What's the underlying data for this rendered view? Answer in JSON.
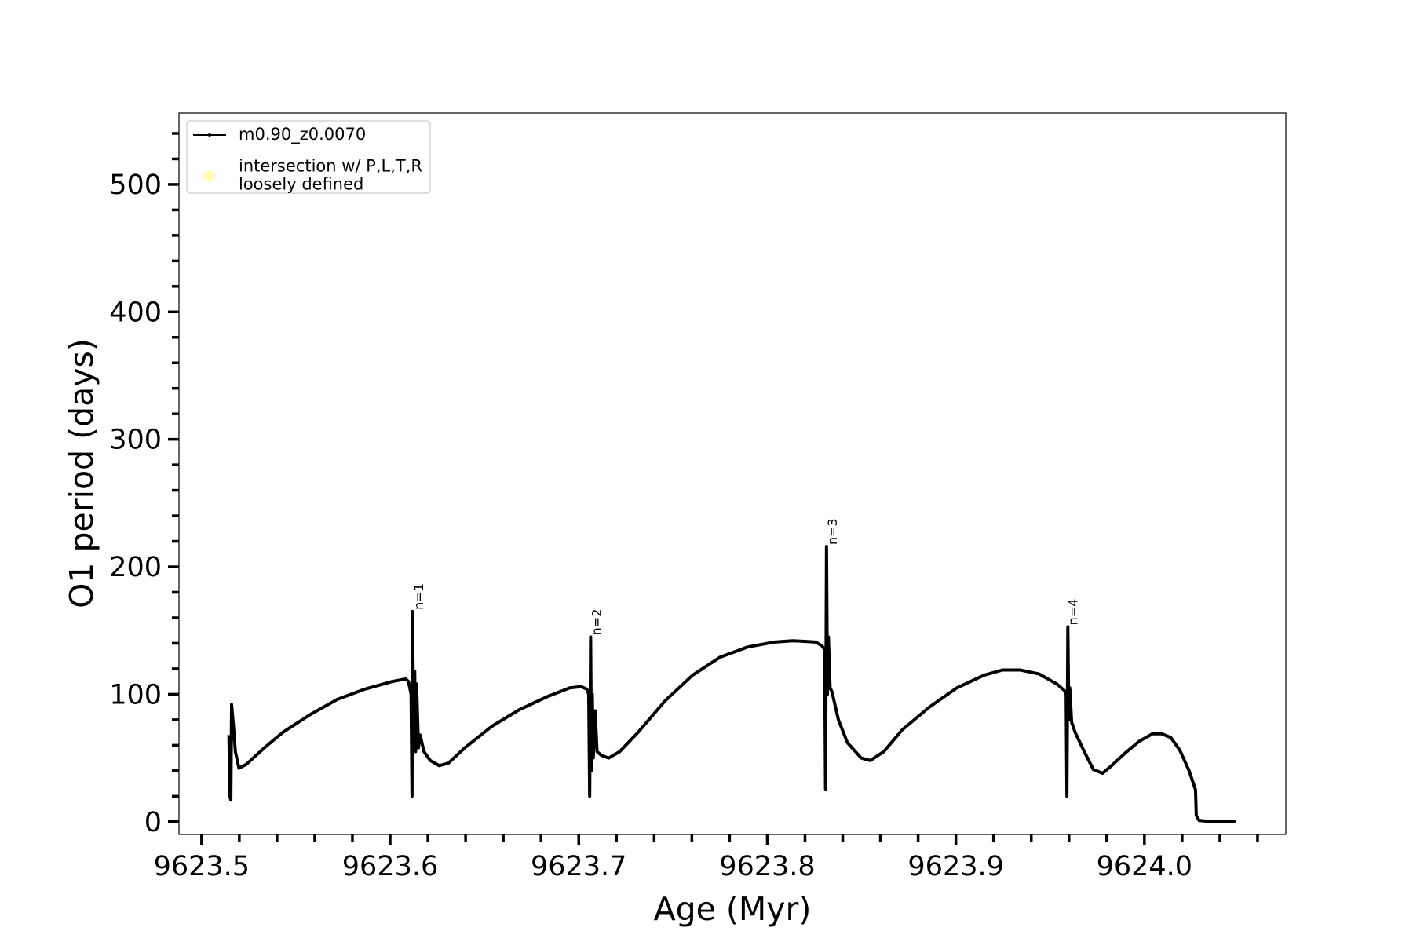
{
  "chart_data": {
    "type": "line",
    "x_label": "Age (Myr)",
    "y_label": "O1 period (days)",
    "xlim": [
      9623.488,
      9624.075
    ],
    "ylim": [
      -10,
      556
    ],
    "xticks": [
      9623.5,
      9623.6,
      9623.7,
      9623.8,
      9623.9,
      {
        "value": 9624,
        "label": "9624.0"
      }
    ],
    "yticks": [
      0,
      100,
      200,
      300,
      400,
      500
    ],
    "xminorticks": [
      9623.52,
      9623.54,
      9623.56,
      9623.58,
      9623.62,
      9623.64,
      9623.66,
      9623.68,
      9623.72,
      9623.74,
      9623.76,
      9623.78,
      9623.82,
      9623.84,
      9623.86,
      9623.88,
      9623.92,
      9623.94,
      9623.96,
      9623.98,
      9624.02,
      9624.04,
      9624.06
    ],
    "yminorticks": [
      20,
      40,
      60,
      80,
      120,
      140,
      160,
      180,
      220,
      240,
      260,
      280,
      320,
      340,
      360,
      380,
      420,
      440,
      460,
      480,
      520,
      540
    ],
    "legend": "upper left",
    "series": [
      {
        "name": "m0.90_z0.0070",
        "color": "#000000",
        "marker": "line",
        "x": [
          9623.5145,
          9623.515,
          9623.5155,
          9623.5159,
          9623.5169,
          9623.5179,
          9623.5198,
          9623.5237,
          9623.5333,
          9623.543,
          9623.5575,
          9623.572,
          9623.5865,
          9623.601,
          9623.6082,
          9623.6097,
          9623.6111,
          9623.6116,
          9623.6118,
          9623.6126,
          9623.613,
          9623.6135,
          9623.614,
          9623.615,
          9623.6159,
          9623.6179,
          9623.6213,
          9623.6261,
          9623.6309,
          9623.6396,
          9623.6541,
          9623.6686,
          9623.6831,
          9623.6952,
          9623.7014,
          9623.7043,
          9623.7053,
          9623.7058,
          9623.7063,
          9623.7068,
          9623.7072,
          9623.7077,
          9623.7087,
          9623.7097,
          9623.7121,
          9623.7159,
          9623.7217,
          9623.7314,
          9623.7459,
          9623.7604,
          9623.7749,
          9623.7894,
          9623.8039,
          9623.8135,
          9623.8256,
          9623.829,
          9623.8304,
          9623.8309,
          9623.8314,
          9623.8319,
          9623.8324,
          9623.8333,
          9623.8343,
          9623.8377,
          9623.8425,
          9623.8498,
          9623.8546,
          9623.8618,
          9623.8715,
          9623.886,
          9623.9005,
          9623.915,
          9623.9246,
          9623.9343,
          9623.944,
          9623.9536,
          9623.9575,
          9623.9585,
          9623.9589,
          9623.9594,
          9623.9599,
          9623.9604,
          9623.9614,
          9623.9633,
          9623.9681,
          9623.9729,
          9623.9778,
          9623.9826,
          9623.9899,
          9623.9971,
          9624.0043,
          9624.0092,
          9624.014,
          9624.0188,
          9624.0237,
          9624.0271,
          9624.0275,
          9624.029,
          9624.0357,
          9624.0483
        ],
        "values": [
          68,
          20,
          17,
          92,
          75,
          55,
          42,
          45,
          58,
          70,
          84,
          96,
          104,
          110,
          112,
          110,
          100,
          20,
          165,
          60,
          118,
          55,
          108,
          58,
          68,
          55,
          48,
          44,
          46,
          58,
          75,
          88,
          98,
          105,
          106,
          104,
          100,
          20,
          145,
          40,
          100,
          50,
          87,
          55,
          52,
          50,
          55,
          70,
          95,
          115,
          129,
          137,
          141,
          142,
          141,
          138,
          135,
          25,
          216,
          100,
          145,
          105,
          102,
          80,
          62,
          50,
          48,
          55,
          72,
          90,
          105,
          115,
          119,
          119,
          116,
          108,
          103,
          100,
          20,
          153,
          80,
          105,
          78,
          70,
          55,
          41,
          38,
          44,
          54,
          63,
          69,
          69,
          66,
          56,
          40,
          25,
          5,
          1,
          0,
          0
        ]
      },
      {
        "name": "intersection w/ P,L,T,R\nloosely defined",
        "color": "#ffffb3",
        "marker": "circle",
        "x": [],
        "values": []
      }
    ],
    "annotations": [
      {
        "text": "n=1",
        "x": 9623.6125,
        "y": 165
      },
      {
        "text": "n=2",
        "x": 9623.7068,
        "y": 145
      },
      {
        "text": "n=3",
        "x": 9623.8319,
        "y": 216
      },
      {
        "text": "n=4",
        "x": 9623.9594,
        "y": 153
      }
    ]
  }
}
